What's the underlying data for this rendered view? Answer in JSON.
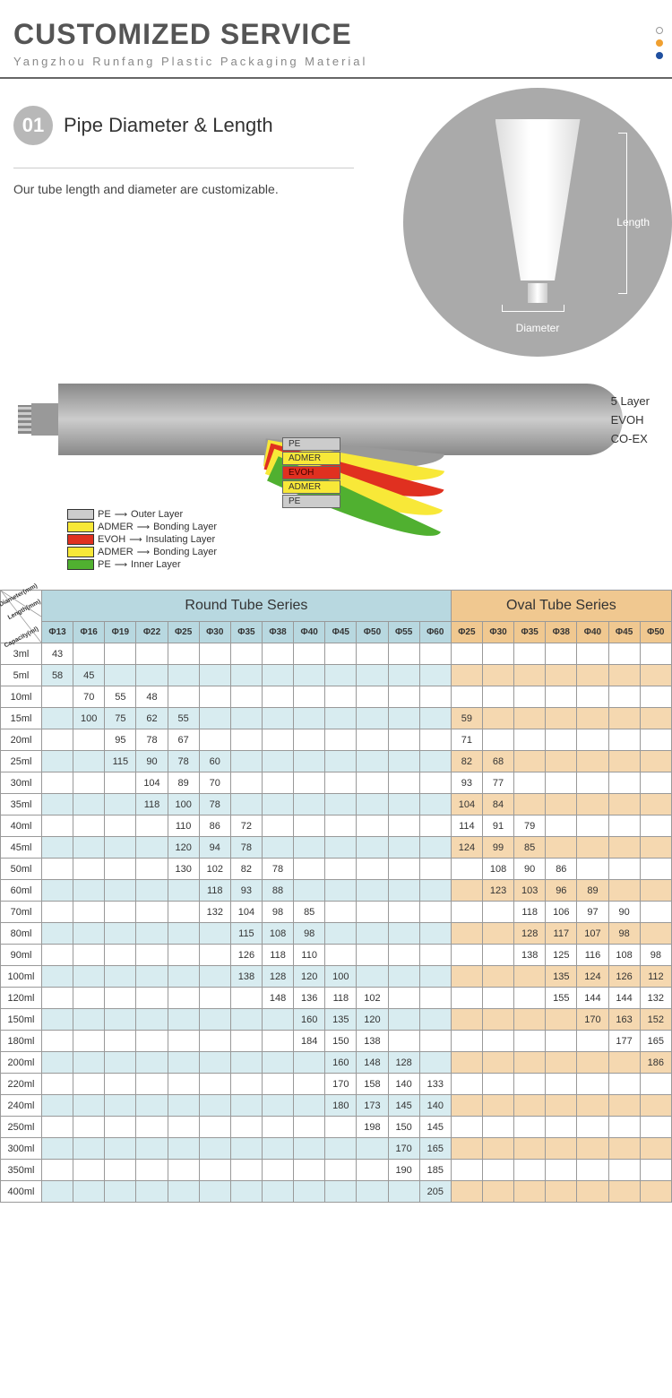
{
  "header": {
    "title": "CUSTOMIZED SERVICE",
    "subtitle": "Yangzhou Runfang Plastic Packaging Material"
  },
  "section1": {
    "badge_num": "01",
    "badge_text": "Pipe Diameter & Length",
    "desc": "Our tube length and diameter are customizable.",
    "label_length": "Length",
    "label_diameter": "Diameter",
    "circle_bg": "#a8a8a8"
  },
  "layers": {
    "right_labels": [
      "5 Layer",
      "EVOH",
      "CO-EX"
    ],
    "layer_names": [
      "PE",
      "ADMER",
      "EVOH",
      "ADMER",
      "PE"
    ],
    "layer_colors": {
      "pe_outer": "#cccccc",
      "admer": "#f8e838",
      "evoh": "#e03020",
      "pe_inner": "#50b030"
    },
    "legend": [
      {
        "box": "lb-pe",
        "name": "PE",
        "role": "Outer Layer"
      },
      {
        "box": "lb-ad",
        "name": "ADMER",
        "role": "Bonding Layer"
      },
      {
        "box": "lb-ev",
        "name": "EVOH",
        "role": "Insulating Layer"
      },
      {
        "box": "lb-ad",
        "name": "ADMER",
        "role": "Bonding Layer"
      },
      {
        "box": "lb-pe2",
        "name": "PE",
        "role": "Inner Layer"
      }
    ]
  },
  "table": {
    "corner": {
      "l1": "Diameter(mm)",
      "l2": "Length(mm)",
      "l3": "Capacity(ml)"
    },
    "series_round": "Round Tube Series",
    "series_oval": "Oval Tube Series",
    "round_cols": [
      "Φ13",
      "Φ16",
      "Φ19",
      "Φ22",
      "Φ25",
      "Φ30",
      "Φ35",
      "Φ38",
      "Φ40",
      "Φ45",
      "Φ50",
      "Φ55",
      "Φ60"
    ],
    "oval_cols": [
      "Φ25",
      "Φ30",
      "Φ35",
      "Φ38",
      "Φ40",
      "Φ45",
      "Φ50"
    ],
    "rows": [
      {
        "cap": "3ml",
        "r": [
          "43",
          "",
          "",
          "",
          "",
          "",
          "",
          "",
          "",
          "",
          "",
          "",
          ""
        ],
        "o": [
          "",
          "",
          "",
          "",
          "",
          "",
          ""
        ]
      },
      {
        "cap": "5ml",
        "r": [
          "58",
          "45",
          "",
          "",
          "",
          "",
          "",
          "",
          "",
          "",
          "",
          "",
          ""
        ],
        "o": [
          "",
          "",
          "",
          "",
          "",
          "",
          ""
        ]
      },
      {
        "cap": "10ml",
        "r": [
          "",
          "70",
          "55",
          "48",
          "",
          "",
          "",
          "",
          "",
          "",
          "",
          "",
          ""
        ],
        "o": [
          "",
          "",
          "",
          "",
          "",
          "",
          ""
        ]
      },
      {
        "cap": "15ml",
        "r": [
          "",
          "100",
          "75",
          "62",
          "55",
          "",
          "",
          "",
          "",
          "",
          "",
          "",
          ""
        ],
        "o": [
          "59",
          "",
          "",
          "",
          "",
          "",
          ""
        ]
      },
      {
        "cap": "20ml",
        "r": [
          "",
          "",
          "95",
          "78",
          "67",
          "",
          "",
          "",
          "",
          "",
          "",
          "",
          ""
        ],
        "o": [
          "71",
          "",
          "",
          "",
          "",
          "",
          ""
        ]
      },
      {
        "cap": "25ml",
        "r": [
          "",
          "",
          "115",
          "90",
          "78",
          "60",
          "",
          "",
          "",
          "",
          "",
          "",
          ""
        ],
        "o": [
          "82",
          "68",
          "",
          "",
          "",
          "",
          ""
        ]
      },
      {
        "cap": "30ml",
        "r": [
          "",
          "",
          "",
          "104",
          "89",
          "70",
          "",
          "",
          "",
          "",
          "",
          "",
          ""
        ],
        "o": [
          "93",
          "77",
          "",
          "",
          "",
          "",
          ""
        ]
      },
      {
        "cap": "35ml",
        "r": [
          "",
          "",
          "",
          "118",
          "100",
          "78",
          "",
          "",
          "",
          "",
          "",
          "",
          ""
        ],
        "o": [
          "104",
          "84",
          "",
          "",
          "",
          "",
          ""
        ]
      },
      {
        "cap": "40ml",
        "r": [
          "",
          "",
          "",
          "",
          "110",
          "86",
          "72",
          "",
          "",
          "",
          "",
          "",
          ""
        ],
        "o": [
          "114",
          "91",
          "79",
          "",
          "",
          "",
          ""
        ]
      },
      {
        "cap": "45ml",
        "r": [
          "",
          "",
          "",
          "",
          "120",
          "94",
          "78",
          "",
          "",
          "",
          "",
          "",
          ""
        ],
        "o": [
          "124",
          "99",
          "85",
          "",
          "",
          "",
          ""
        ]
      },
      {
        "cap": "50ml",
        "r": [
          "",
          "",
          "",
          "",
          "130",
          "102",
          "82",
          "78",
          "",
          "",
          "",
          "",
          ""
        ],
        "o": [
          "",
          "108",
          "90",
          "86",
          "",
          "",
          ""
        ]
      },
      {
        "cap": "60ml",
        "r": [
          "",
          "",
          "",
          "",
          "",
          "118",
          "93",
          "88",
          "",
          "",
          "",
          "",
          ""
        ],
        "o": [
          "",
          "123",
          "103",
          "96",
          "89",
          "",
          ""
        ]
      },
      {
        "cap": "70ml",
        "r": [
          "",
          "",
          "",
          "",
          "",
          "132",
          "104",
          "98",
          "85",
          "",
          "",
          "",
          ""
        ],
        "o": [
          "",
          "",
          "118",
          "106",
          "97",
          "90",
          ""
        ]
      },
      {
        "cap": "80ml",
        "r": [
          "",
          "",
          "",
          "",
          "",
          "",
          "115",
          "108",
          "98",
          "",
          "",
          "",
          ""
        ],
        "o": [
          "",
          "",
          "128",
          "117",
          "107",
          "98",
          ""
        ]
      },
      {
        "cap": "90ml",
        "r": [
          "",
          "",
          "",
          "",
          "",
          "",
          "126",
          "118",
          "110",
          "",
          "",
          "",
          ""
        ],
        "o": [
          "",
          "",
          "138",
          "125",
          "116",
          "108",
          "98"
        ]
      },
      {
        "cap": "100ml",
        "r": [
          "",
          "",
          "",
          "",
          "",
          "",
          "138",
          "128",
          "120",
          "100",
          "",
          "",
          ""
        ],
        "o": [
          "",
          "",
          "",
          "135",
          "124",
          "126",
          "112"
        ]
      },
      {
        "cap": "120ml",
        "r": [
          "",
          "",
          "",
          "",
          "",
          "",
          "",
          "148",
          "136",
          "118",
          "102",
          "",
          ""
        ],
        "o": [
          "",
          "",
          "",
          "155",
          "144",
          "144",
          "132"
        ]
      },
      {
        "cap": "150ml",
        "r": [
          "",
          "",
          "",
          "",
          "",
          "",
          "",
          "",
          "160",
          "135",
          "120",
          "",
          ""
        ],
        "o": [
          "",
          "",
          "",
          "",
          "170",
          "163",
          "152"
        ]
      },
      {
        "cap": "180ml",
        "r": [
          "",
          "",
          "",
          "",
          "",
          "",
          "",
          "",
          "184",
          "150",
          "138",
          "",
          ""
        ],
        "o": [
          "",
          "",
          "",
          "",
          "",
          "177",
          "165"
        ]
      },
      {
        "cap": "200ml",
        "r": [
          "",
          "",
          "",
          "",
          "",
          "",
          "",
          "",
          "",
          "160",
          "148",
          "128",
          ""
        ],
        "o": [
          "",
          "",
          "",
          "",
          "",
          "",
          "186"
        ]
      },
      {
        "cap": "220ml",
        "r": [
          "",
          "",
          "",
          "",
          "",
          "",
          "",
          "",
          "",
          "170",
          "158",
          "140",
          "133"
        ],
        "o": [
          "",
          "",
          "",
          "",
          "",
          "",
          ""
        ]
      },
      {
        "cap": "240ml",
        "r": [
          "",
          "",
          "",
          "",
          "",
          "",
          "",
          "",
          "",
          "180",
          "173",
          "145",
          "140"
        ],
        "o": [
          "",
          "",
          "",
          "",
          "",
          "",
          ""
        ]
      },
      {
        "cap": "250ml",
        "r": [
          "",
          "",
          "",
          "",
          "",
          "",
          "",
          "",
          "",
          "",
          "198",
          "150",
          "145"
        ],
        "o": [
          "",
          "",
          "",
          "",
          "",
          "",
          ""
        ]
      },
      {
        "cap": "300ml",
        "r": [
          "",
          "",
          "",
          "",
          "",
          "",
          "",
          "",
          "",
          "",
          "",
          "170",
          "165"
        ],
        "o": [
          "",
          "",
          "",
          "",
          "",
          "",
          ""
        ]
      },
      {
        "cap": "350ml",
        "r": [
          "",
          "",
          "",
          "",
          "",
          "",
          "",
          "",
          "",
          "",
          "",
          "190",
          "185"
        ],
        "o": [
          "",
          "",
          "",
          "",
          "",
          "",
          ""
        ]
      },
      {
        "cap": "400ml",
        "r": [
          "",
          "",
          "",
          "",
          "",
          "",
          "",
          "",
          "",
          "",
          "",
          "",
          "205"
        ],
        "o": [
          "",
          "",
          "",
          "",
          "",
          "",
          ""
        ]
      }
    ],
    "colors": {
      "round_header": "#b8d8e0",
      "oval_header": "#f0c890",
      "round_alt": "#d8ecf0",
      "oval_alt": "#f5d8b0",
      "border": "#999999"
    }
  }
}
